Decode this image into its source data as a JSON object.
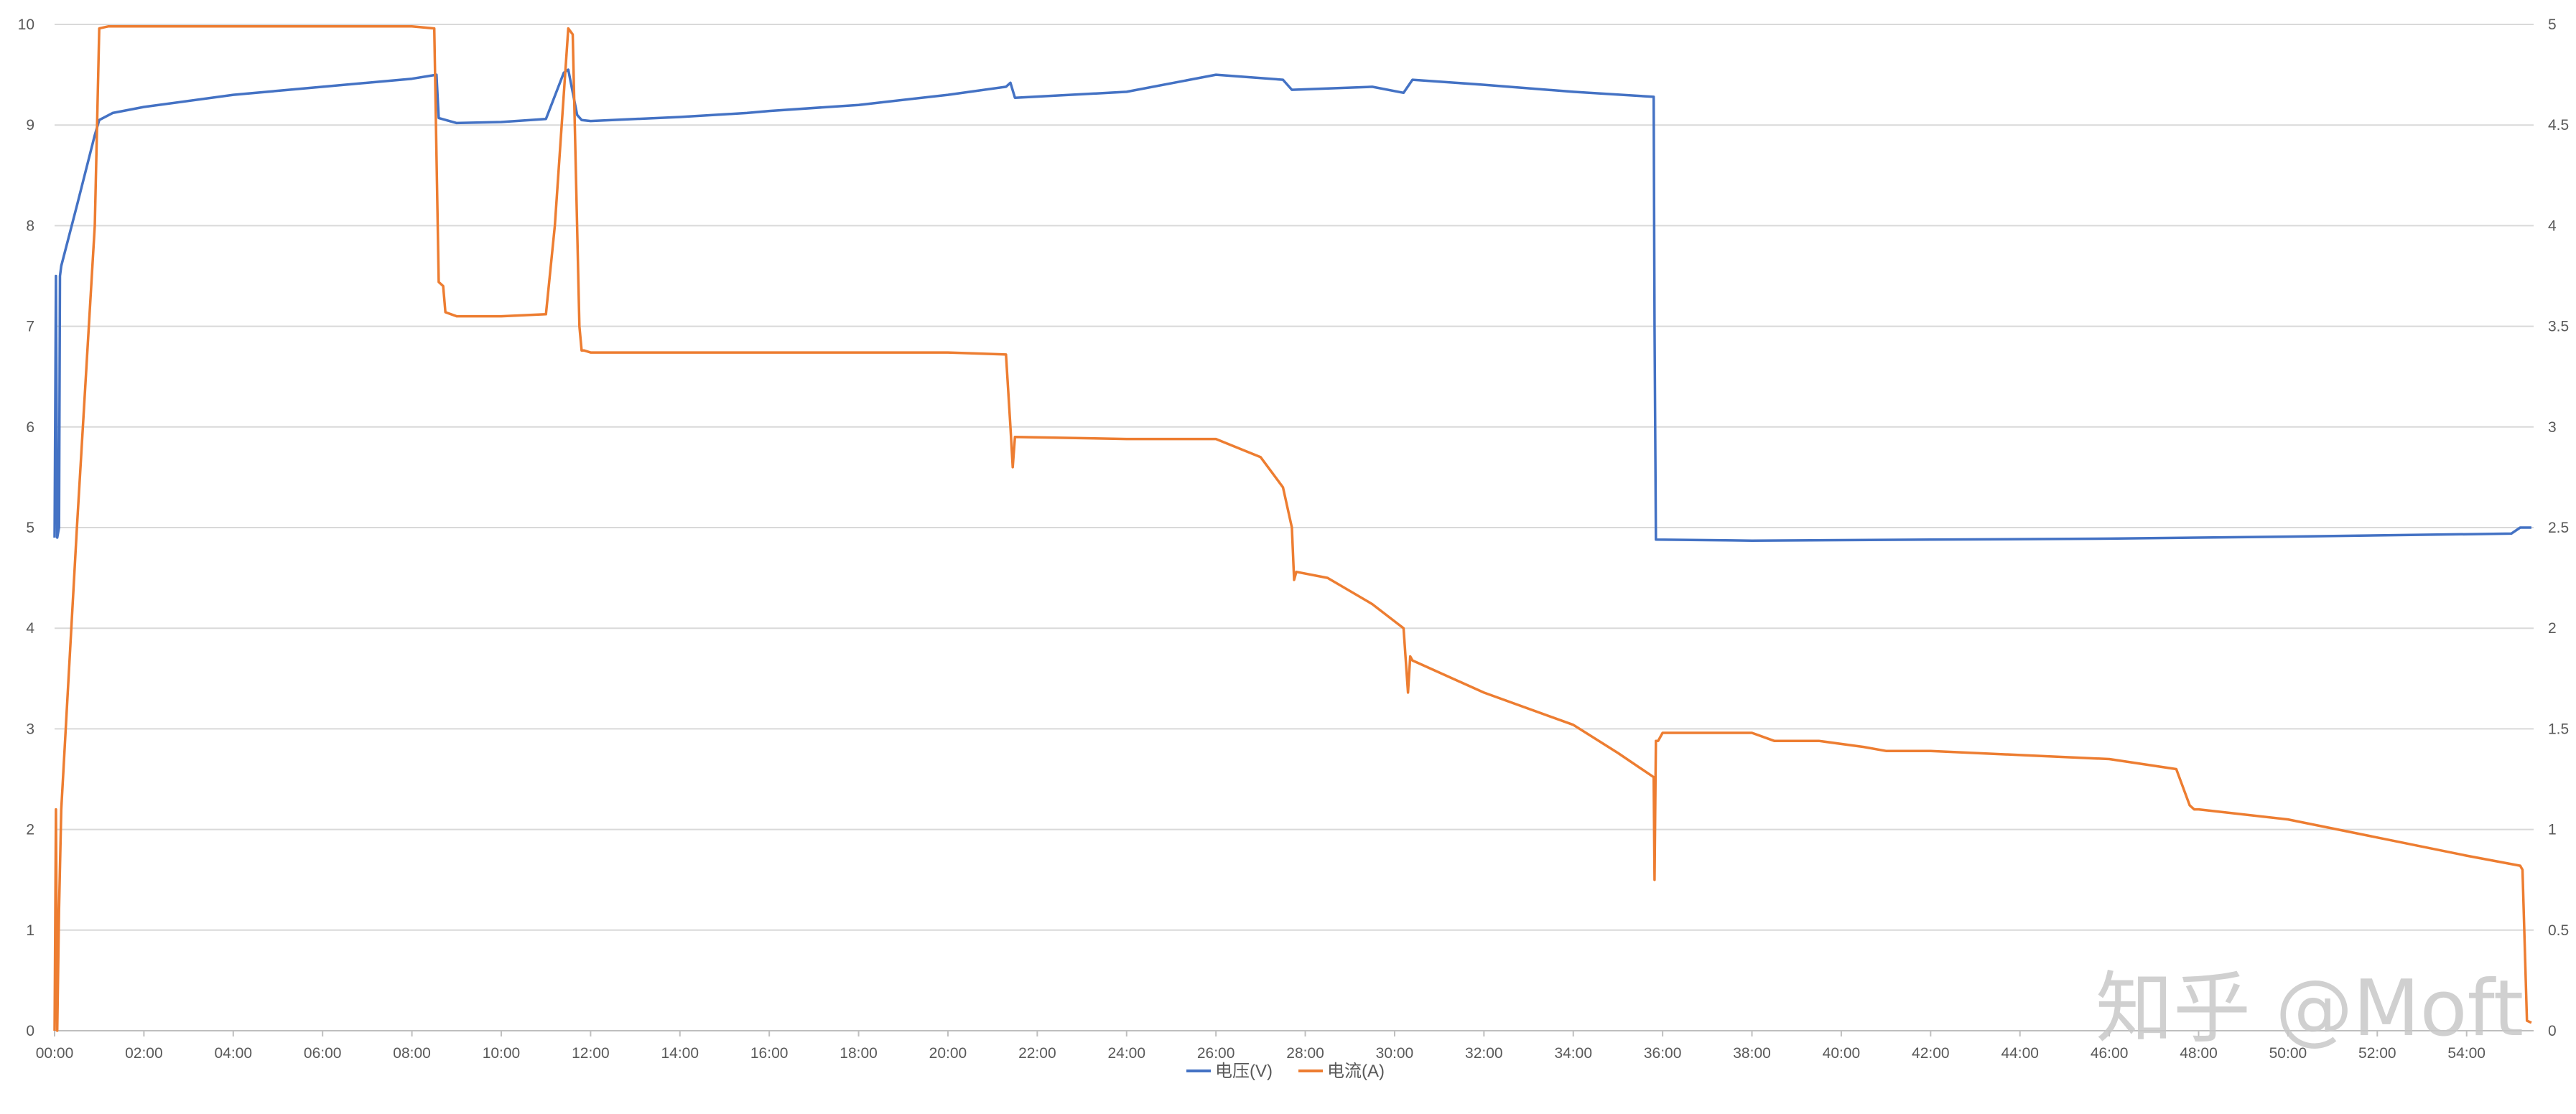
{
  "chart_data": {
    "type": "line",
    "title": "",
    "xlabel": "",
    "ylabel": "",
    "y2label": "",
    "xlim": [
      0,
      55.5
    ],
    "ylim": [
      0,
      10
    ],
    "y2lim": [
      0,
      5
    ],
    "grid": true,
    "legend_position": "bottom",
    "x_tick_labels": [
      "00:00",
      "02:00",
      "04:00",
      "06:00",
      "08:00",
      "10:00",
      "12:00",
      "14:00",
      "16:00",
      "18:00",
      "20:00",
      "22:00",
      "24:00",
      "26:00",
      "28:00",
      "30:00",
      "32:00",
      "34:00",
      "36:00",
      "38:00",
      "40:00",
      "42:00",
      "44:00",
      "46:00",
      "48:00",
      "50:00",
      "52:00",
      "54:00"
    ],
    "y_tick_labels": [
      "0",
      "1",
      "2",
      "3",
      "4",
      "5",
      "6",
      "7",
      "8",
      "9",
      "10"
    ],
    "y2_tick_labels": [
      "0",
      "0.5",
      "1",
      "1.5",
      "2",
      "2.5",
      "3",
      "3.5",
      "4",
      "4.5",
      "5"
    ],
    "series": [
      {
        "name": "电压(V)",
        "axis": "left",
        "color": "#4472C4",
        "x": [
          0,
          0.03,
          0.06,
          0.1,
          0.12,
          0.15,
          0.5,
          0.9,
          1.0,
          1.3,
          2.0,
          4.0,
          6.0,
          8.0,
          8.55,
          8.6,
          9.0,
          10.0,
          11.0,
          11.4,
          11.5,
          11.7,
          11.8,
          12.0,
          14.0,
          15.5,
          16.0,
          18.0,
          20.0,
          21.3,
          21.4,
          21.5,
          24.0,
          26.0,
          27.5,
          27.7,
          29.5,
          30.2,
          30.4,
          32.0,
          34.0,
          35.8,
          35.82,
          35.85,
          38.0,
          42.0,
          46.0,
          50.0,
          55.0,
          55.2,
          55.45
        ],
        "y": [
          4.9,
          7.5,
          4.9,
          5.0,
          7.5,
          7.6,
          8.2,
          8.9,
          9.05,
          9.12,
          9.18,
          9.3,
          9.38,
          9.46,
          9.5,
          9.07,
          9.02,
          9.03,
          9.06,
          9.52,
          9.55,
          9.1,
          9.05,
          9.04,
          9.08,
          9.12,
          9.14,
          9.2,
          9.3,
          9.38,
          9.42,
          9.27,
          9.33,
          9.5,
          9.45,
          9.35,
          9.38,
          9.32,
          9.45,
          9.4,
          9.33,
          9.28,
          7.0,
          4.88,
          4.87,
          4.88,
          4.89,
          4.91,
          4.94,
          5.0,
          5.0
        ]
      },
      {
        "name": "电流(A)",
        "axis": "right",
        "color": "#ED7D31",
        "x": [
          0,
          0.03,
          0.06,
          0.1,
          0.15,
          0.5,
          0.9,
          1.0,
          1.2,
          2.0,
          4.0,
          6.0,
          8.0,
          8.5,
          8.6,
          8.7,
          8.75,
          9.0,
          10.0,
          11.0,
          11.2,
          11.5,
          11.6,
          11.75,
          11.8,
          11.85,
          12.0,
          14.0,
          16.0,
          18.0,
          20.0,
          21.3,
          21.4,
          21.45,
          21.5,
          24.0,
          26.0,
          27.0,
          27.5,
          27.7,
          27.75,
          27.8,
          28.5,
          29.5,
          30.2,
          30.3,
          30.35,
          30.4,
          32.0,
          34.0,
          35.0,
          35.8,
          35.82,
          35.85,
          35.9,
          36.0,
          36.3,
          36.35,
          36.4,
          38.0,
          38.5,
          39.5,
          40.5,
          41.0,
          42.0,
          44.0,
          46.0,
          47.5,
          47.8,
          47.9,
          48.0,
          50.0,
          52.0,
          54.0,
          55.2,
          55.25,
          55.35,
          55.45
        ],
        "y": [
          0,
          1.1,
          0,
          0.6,
          1.1,
          2.5,
          4.0,
          4.98,
          4.99,
          4.99,
          4.99,
          4.99,
          4.99,
          4.98,
          3.72,
          3.7,
          3.57,
          3.55,
          3.55,
          3.56,
          4.0,
          4.98,
          4.95,
          3.5,
          3.38,
          3.38,
          3.37,
          3.37,
          3.37,
          3.37,
          3.37,
          3.36,
          3.0,
          2.8,
          2.95,
          2.94,
          2.94,
          2.85,
          2.7,
          2.5,
          2.24,
          2.28,
          2.25,
          2.12,
          2.0,
          1.68,
          1.86,
          1.84,
          1.68,
          1.52,
          1.38,
          1.26,
          0.75,
          1.44,
          1.44,
          1.48,
          1.48,
          1.48,
          1.48,
          1.48,
          1.44,
          1.44,
          1.41,
          1.39,
          1.39,
          1.37,
          1.35,
          1.3,
          1.12,
          1.1,
          1.1,
          1.05,
          0.96,
          0.87,
          0.82,
          0.8,
          0.05,
          0.04
        ]
      }
    ]
  },
  "watermark": {
    "text": "知乎 @Moft"
  }
}
